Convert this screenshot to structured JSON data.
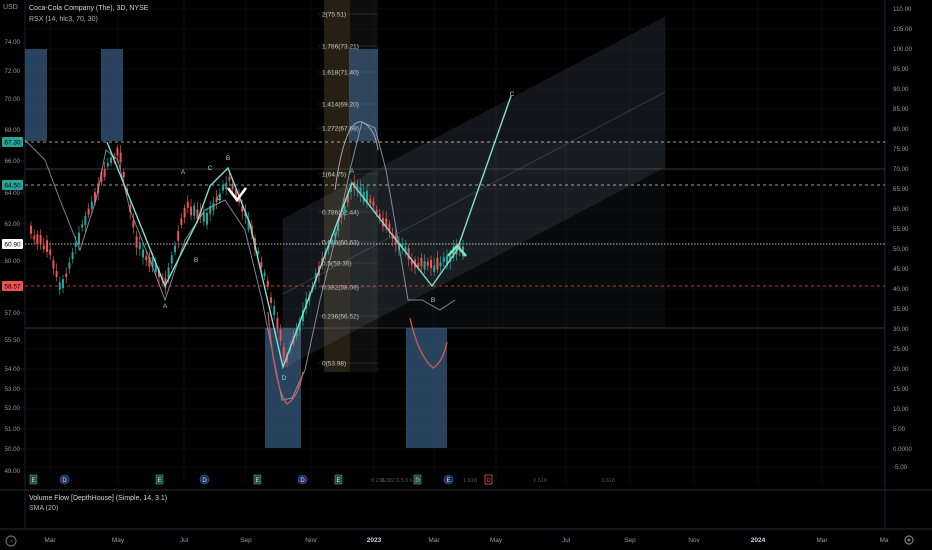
{
  "header": {
    "currency": "USD",
    "symbol_line": "Coca-Cola Company (The), 3D, NYSE",
    "indicator_line": "RSX (14, hlc3, 70, 30)"
  },
  "bottom_panel": {
    "legend_1": "Volume Flow [DepthHouse] (Simple, 14, 3.1)",
    "legend_2": "SMA (20)"
  },
  "left_axis": [
    "74.00",
    "72.00",
    "70.00",
    "68.00",
    "66.00",
    "64.00",
    "62.00",
    "60.00",
    "58.00",
    "57.00",
    "55.50",
    "54.00",
    "53.00",
    "52.00",
    "51.00",
    "50.00",
    "49.00"
  ],
  "left_badges": [
    {
      "value": "67.30",
      "color": "#26a69a",
      "text_color": "#000000"
    },
    {
      "value": "64.50",
      "color": "#26a69a",
      "text_color": "#000000"
    },
    {
      "value": "60.90",
      "color": "#ffffff",
      "text_color": "#000000"
    },
    {
      "value": "58.57",
      "color": "#ef5350",
      "text_color": "#000000"
    }
  ],
  "right_axis": [
    "110.00",
    "105.00",
    "100.00",
    "95.00",
    "90.00",
    "85.00",
    "80.00",
    "75.00",
    "70.00",
    "65.00",
    "60.00",
    "55.00",
    "50.00",
    "45.00",
    "40.00",
    "35.00",
    "30.00",
    "25.00",
    "20.00",
    "15.00",
    "10.00",
    "5.00",
    "0.0000",
    "-5.00"
  ],
  "time_axis": [
    "Mar",
    "May",
    "Jul",
    "Sep",
    "Nov",
    "2023",
    "Mar",
    "May",
    "Jul",
    "Sep",
    "Nov",
    "2024",
    "Mar",
    "Ma"
  ],
  "fib_levels": [
    "2(75.51)",
    "1.786(73.21)",
    "1.618(71.40)",
    "1.414(69.20)",
    "1.272(67.68)",
    "1(64.75)",
    "0.786(62.44)",
    "0.618(60.63)",
    "0.5(59.36)",
    "0.382(58.09)",
    "0.236(56.52)",
    "0(53.98)"
  ],
  "wave_labels": [
    "A",
    "B",
    "C",
    "A",
    "B",
    "C",
    "D",
    "A",
    "B",
    "C",
    "C"
  ],
  "event_markers": [
    "E",
    "D",
    "E",
    "D",
    "E",
    "D",
    "E",
    "D",
    "E",
    "D",
    "E"
  ],
  "bottom_fib_labels": [
    "0.236",
    "0.382",
    "0.5",
    "0.618",
    "1.618",
    "2.618",
    "3.618"
  ],
  "icons": [
    "tradingview-logo-icon",
    "settings-gear-icon"
  ],
  "colors": {
    "up_candle": "#26a69a",
    "down_candle": "#ef5350",
    "pattern_line": "#7fdfd4",
    "channel": "#8fa5bd",
    "highlight_box": "#3b5f86",
    "rsx_line": "#9aa8b8",
    "rsx_low": "#d25a5a"
  }
}
